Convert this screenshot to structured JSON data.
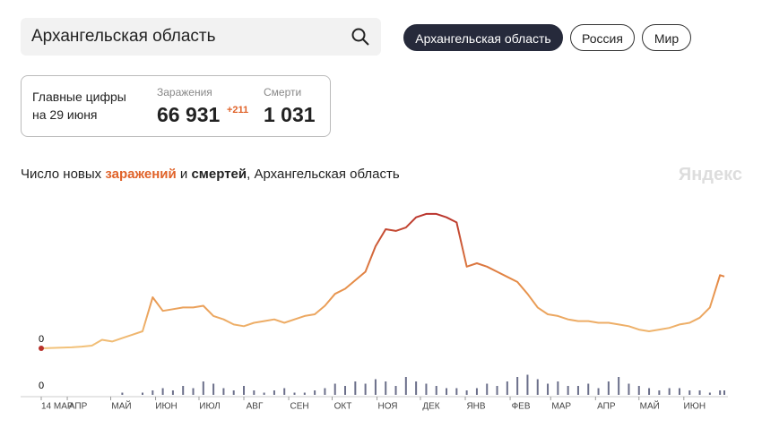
{
  "search": {
    "query": "Архангельская область"
  },
  "tabs": [
    "Архангельская область",
    "Россия",
    "Мир"
  ],
  "stats": {
    "heading": "Главные цифры",
    "date": "на 29 июня",
    "cases_label": "Заражения",
    "cases": "66 931",
    "cases_delta": "+211",
    "deaths_label": "Смерти",
    "deaths": "1 031"
  },
  "title": {
    "part1": "Число новых ",
    "cases_word": "заражений",
    "part2": " и ",
    "deaths_word": "смертей",
    "part3": ", Архангельская область"
  },
  "brand": "Яндекс",
  "chart_data": [
    {
      "type": "line",
      "colors": [
        "#f2c27a",
        "#e58a45",
        "#b8312b"
      ],
      "x": [
        0,
        7,
        14,
        21,
        28,
        35,
        42,
        49,
        56,
        63,
        70,
        77,
        84,
        91,
        98,
        105,
        112,
        119,
        126,
        133,
        140,
        147,
        154,
        161,
        168,
        175,
        182,
        189,
        196,
        203,
        210,
        217,
        224,
        231,
        238,
        245,
        252,
        259,
        266,
        273,
        280,
        287,
        294,
        301,
        308,
        315,
        322,
        329,
        336,
        343,
        350,
        357,
        364,
        371,
        378,
        385,
        392,
        399,
        406,
        413,
        420,
        427,
        434,
        441,
        448,
        455,
        462,
        469,
        472
      ],
      "values": [
        0,
        1,
        2,
        3,
        5,
        8,
        25,
        20,
        30,
        40,
        50,
        150,
        110,
        115,
        120,
        120,
        125,
        95,
        85,
        70,
        65,
        75,
        80,
        85,
        75,
        85,
        95,
        100,
        125,
        160,
        175,
        200,
        225,
        300,
        350,
        345,
        355,
        385,
        395,
        395,
        385,
        370,
        240,
        250,
        240,
        225,
        210,
        195,
        160,
        120,
        100,
        95,
        85,
        80,
        80,
        75,
        75,
        70,
        65,
        55,
        50,
        55,
        60,
        70,
        75,
        90,
        120,
        215,
        211
      ],
      "xlim": [
        0,
        472
      ],
      "ylim": [
        0,
        400
      ],
      "yticks": [
        0
      ]
    },
    {
      "type": "bar",
      "color": "#6b6f8a",
      "x": [
        0,
        7,
        14,
        21,
        28,
        35,
        42,
        49,
        56,
        63,
        70,
        77,
        84,
        91,
        98,
        105,
        112,
        119,
        126,
        133,
        140,
        147,
        154,
        161,
        168,
        175,
        182,
        189,
        196,
        203,
        210,
        217,
        224,
        231,
        238,
        245,
        252,
        259,
        266,
        273,
        280,
        287,
        294,
        301,
        308,
        315,
        322,
        329,
        336,
        343,
        350,
        357,
        364,
        371,
        378,
        385,
        392,
        399,
        406,
        413,
        420,
        427,
        434,
        441,
        448,
        455,
        462,
        469,
        472
      ],
      "values": [
        0,
        0,
        0,
        0,
        0,
        0,
        0,
        0,
        1,
        0,
        1,
        2,
        3,
        2,
        4,
        3,
        6,
        5,
        3,
        2,
        4,
        2,
        1,
        2,
        3,
        1,
        1,
        2,
        3,
        5,
        4,
        6,
        5,
        7,
        6,
        4,
        8,
        6,
        5,
        4,
        3,
        3,
        2,
        3,
        5,
        4,
        6,
        8,
        9,
        7,
        5,
        6,
        4,
        4,
        5,
        3,
        6,
        8,
        5,
        4,
        3,
        2,
        3,
        3,
        2,
        2,
        1,
        2,
        2
      ],
      "xlim": [
        0,
        472
      ],
      "ylim": [
        0,
        12
      ],
      "yticks": [
        0
      ],
      "xticks": [
        {
          "value": 0,
          "label": "14 МАР"
        },
        {
          "value": 18,
          "label": "АПР"
        },
        {
          "value": 48,
          "label": "МАЙ"
        },
        {
          "value": 79,
          "label": "ИЮН"
        },
        {
          "value": 109,
          "label": "ИЮЛ"
        },
        {
          "value": 140,
          "label": "АВГ"
        },
        {
          "value": 171,
          "label": "СЕН"
        },
        {
          "value": 201,
          "label": "ОКТ"
        },
        {
          "value": 232,
          "label": "НОЯ"
        },
        {
          "value": 262,
          "label": "ДЕК"
        },
        {
          "value": 293,
          "label": "ЯНВ"
        },
        {
          "value": 324,
          "label": "ФЕВ"
        },
        {
          "value": 352,
          "label": "МАР"
        },
        {
          "value": 383,
          "label": "АПР"
        },
        {
          "value": 413,
          "label": "МАЙ"
        },
        {
          "value": 444,
          "label": "ИЮН"
        }
      ]
    }
  ]
}
